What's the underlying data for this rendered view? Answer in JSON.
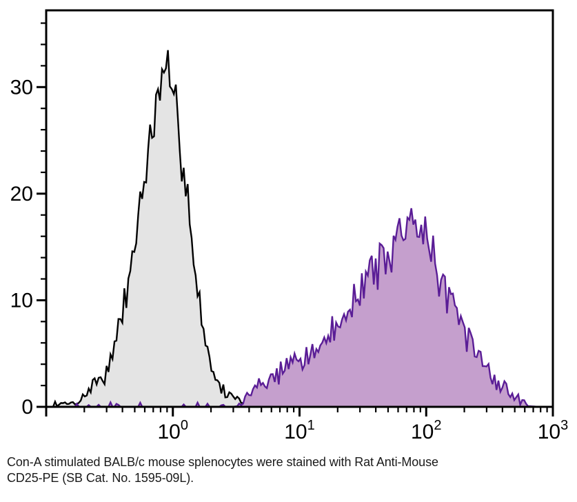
{
  "figure": {
    "caption_line1": "Con-A stimulated BALB/c mouse splenocytes were stained with Rat Anti-Mouse",
    "caption_line2": "CD25-PE (SB Cat. No. 1595-09L)."
  },
  "colors": {
    "background": "#ffffff",
    "axis": "#000000",
    "tick_label": "#000000",
    "caption_text": "#1a1a1a",
    "gray_fill": "#e4e4e4",
    "gray_stroke": "#000000",
    "purple_fill": "#c59fcd",
    "purple_stroke": "#5a1d96"
  },
  "chart_data": {
    "type": "area",
    "subtype": "flow-cytometry-histogram-overlay",
    "title": "",
    "xlabel": "",
    "ylabel": "",
    "grid": false,
    "legend": "none",
    "bins": 256,
    "x_axis": {
      "scale": "log10",
      "range_log10": [
        -1,
        3
      ],
      "major_ticks": [
        {
          "log": -1,
          "base": "",
          "exp": ""
        },
        {
          "log": 0,
          "base": "10",
          "exp": "0"
        },
        {
          "log": 1,
          "base": "10",
          "exp": "1"
        },
        {
          "log": 2,
          "base": "10",
          "exp": "2"
        },
        {
          "log": 3,
          "base": "10",
          "exp": "3"
        }
      ],
      "minor_ticks": "2-9 within each decade"
    },
    "y_axis": {
      "range": [
        0,
        37.2
      ],
      "major_ticks": [
        0,
        10,
        20,
        30
      ],
      "minor_tick_step": 2
    },
    "series": [
      {
        "id": "gray-control-histogram",
        "description": "black-outlined gray-filled histogram, peak near x=0.8 reaching ~35.5",
        "fill": "#e4e4e4",
        "stroke": "#000000",
        "stroke_width": 2.4,
        "peak_x_log10": -0.09,
        "peak_height": 35.5,
        "seed": 7,
        "noise_amp": 3.5,
        "blip_threshold": 0.2,
        "blip_prob": 0.25,
        "blip_max": 0.4,
        "envelope_log10x_y": [
          [
            -1,
            0
          ],
          [
            -0.93,
            0
          ],
          [
            -0.92,
            0.15
          ],
          [
            -0.86,
            0.3
          ],
          [
            -0.8,
            0.35
          ],
          [
            -0.74,
            0.5
          ],
          [
            -0.7,
            1.0
          ],
          [
            -0.66,
            1.6
          ],
          [
            -0.62,
            2.3
          ],
          [
            -0.58,
            2.6
          ],
          [
            -0.54,
            3.0
          ],
          [
            -0.5,
            3.8
          ],
          [
            -0.46,
            5.5
          ],
          [
            -0.42,
            7.5
          ],
          [
            -0.38,
            10
          ],
          [
            -0.34,
            12.5
          ],
          [
            -0.3,
            15.5
          ],
          [
            -0.26,
            19
          ],
          [
            -0.22,
            22
          ],
          [
            -0.18,
            24.5
          ],
          [
            -0.14,
            27
          ],
          [
            -0.1,
            29.5
          ],
          [
            -0.06,
            31.5
          ],
          [
            -0.02,
            30
          ],
          [
            0.02,
            28
          ],
          [
            0.06,
            25
          ],
          [
            0.1,
            21.5
          ],
          [
            0.14,
            17
          ],
          [
            0.18,
            12.5
          ],
          [
            0.22,
            9
          ],
          [
            0.26,
            6
          ],
          [
            0.3,
            4
          ],
          [
            0.34,
            2.6
          ],
          [
            0.38,
            1.7
          ],
          [
            0.44,
            1.1
          ],
          [
            0.5,
            0.9
          ],
          [
            0.56,
            0.5
          ],
          [
            0.6,
            0.2
          ],
          [
            0.64,
            0
          ],
          [
            3,
            0
          ]
        ]
      },
      {
        "id": "purple-cd25-pe-histogram",
        "description": "dark-purple-outlined light-purple-filled histogram, peak near x=75 reaching ~20.5",
        "fill": "#c59fcd",
        "stroke": "#5a1d96",
        "stroke_width": 2.4,
        "peak_x_log10": 1.86,
        "peak_height": 20.5,
        "seed": 42,
        "noise_amp": 3.2,
        "blip_threshold": 0.3,
        "blip_prob": 0.12,
        "blip_max": 0.35,
        "envelope_log10x_y": [
          [
            -1,
            0.04
          ],
          [
            0.48,
            0.04
          ],
          [
            0.54,
            0.5
          ],
          [
            0.6,
            1.1
          ],
          [
            0.66,
            1.7
          ],
          [
            0.72,
            2.2
          ],
          [
            0.8,
            2.8
          ],
          [
            0.9,
            3.5
          ],
          [
            1.0,
            4.3
          ],
          [
            1.1,
            5.2
          ],
          [
            1.2,
            6.2
          ],
          [
            1.3,
            7.6
          ],
          [
            1.4,
            9.2
          ],
          [
            1.5,
            11
          ],
          [
            1.6,
            13
          ],
          [
            1.7,
            15
          ],
          [
            1.78,
            16.3
          ],
          [
            1.86,
            17
          ],
          [
            1.94,
            16.5
          ],
          [
            2.0,
            15.3
          ],
          [
            2.06,
            13.8
          ],
          [
            2.12,
            12
          ],
          [
            2.2,
            10
          ],
          [
            2.28,
            8
          ],
          [
            2.36,
            6
          ],
          [
            2.44,
            4.4
          ],
          [
            2.52,
            3
          ],
          [
            2.6,
            1.9
          ],
          [
            2.68,
            1
          ],
          [
            2.74,
            0.55
          ],
          [
            2.8,
            0.25
          ],
          [
            2.86,
            0.08
          ],
          [
            2.9,
            0
          ],
          [
            3,
            0
          ]
        ]
      }
    ]
  }
}
